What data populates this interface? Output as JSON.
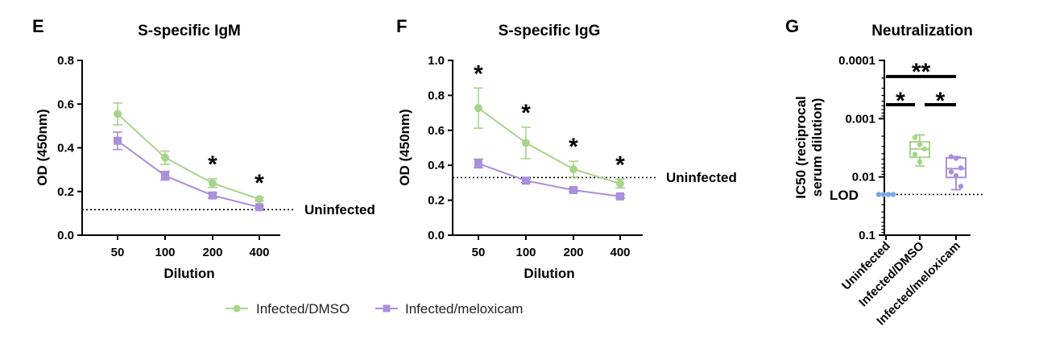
{
  "colors": {
    "dmso": "#a6d58a",
    "meloxicam": "#a98fdc",
    "uninfected": "#7aa6e8"
  },
  "legend": {
    "dmso": "Infected/DMSO",
    "meloxicam": "Infected/meloxicam"
  },
  "chart_data": [
    {
      "panel": "E",
      "type": "line",
      "title": "S-specific IgM",
      "xlabel": "Dilution",
      "ylabel": "OD (450nm)",
      "categories": [
        "50",
        "100",
        "200",
        "400"
      ],
      "ylim": [
        0,
        0.8
      ],
      "yticks": [
        0.0,
        0.2,
        0.4,
        0.6,
        0.8
      ],
      "ytick_labels": [
        "0.0",
        "0.2",
        "0.4",
        "0.6",
        "0.8"
      ],
      "series": [
        {
          "name": "Infected/DMSO",
          "values": [
            0.555,
            0.355,
            0.238,
            0.165
          ],
          "errors": [
            0.05,
            0.03,
            0.02,
            0.008
          ]
        },
        {
          "name": "Infected/meloxicam",
          "values": [
            0.432,
            0.272,
            0.182,
            0.128
          ],
          "errors": [
            0.04,
            0.02,
            0.012,
            0.006
          ]
        }
      ],
      "reference_line": {
        "value": 0.117,
        "label": "Uninfected"
      },
      "significance": [
        {
          "category": "200",
          "label": "*"
        },
        {
          "category": "400",
          "label": "*"
        }
      ]
    },
    {
      "panel": "F",
      "type": "line",
      "title": "S-specific IgG",
      "xlabel": "Dilution",
      "ylabel": "OD (450nm)",
      "categories": [
        "50",
        "100",
        "200",
        "400"
      ],
      "ylim": [
        0,
        1.0
      ],
      "yticks": [
        0.0,
        0.2,
        0.4,
        0.6,
        0.8,
        1.0
      ],
      "ytick_labels": [
        "0.0",
        "0.2",
        "0.4",
        "0.6",
        "0.8",
        "1.0"
      ],
      "series": [
        {
          "name": "Infected/DMSO",
          "values": [
            0.727,
            0.528,
            0.378,
            0.295
          ],
          "errors": [
            0.115,
            0.09,
            0.045,
            0.025
          ]
        },
        {
          "name": "Infected/meloxicam",
          "values": [
            0.41,
            0.312,
            0.258,
            0.222
          ],
          "errors": [
            0.025,
            0.01,
            0.01,
            0.01
          ]
        }
      ],
      "reference_line": {
        "value": 0.33,
        "label": "Uninfected"
      },
      "significance": [
        {
          "category": "50",
          "label": "*"
        },
        {
          "category": "100",
          "label": "*"
        },
        {
          "category": "200",
          "label": "*"
        },
        {
          "category": "400",
          "label": "*"
        }
      ]
    },
    {
      "panel": "G",
      "type": "box",
      "title": "Neutralization",
      "ylabel_lines": [
        "IC50 (reciprocal",
        "serum dilution)"
      ],
      "yscale": "log",
      "y_inverted": true,
      "yticks": [
        0.0001,
        0.001,
        0.01,
        0.1
      ],
      "ytick_labels": [
        "0.0001",
        "0.001",
        "0.01",
        "0.1"
      ],
      "categories": [
        "Uninfected",
        "Infected/DMSO",
        "Infected/meloxicam"
      ],
      "reference_line": {
        "value": 0.02,
        "label": "LOD"
      },
      "groups": [
        {
          "name": "Uninfected",
          "points": [
            0.02,
            0.02,
            0.02,
            0.02
          ],
          "box": null
        },
        {
          "name": "Infected/DMSO",
          "points": [
            0.0021,
            0.0028,
            0.0033,
            0.0041,
            0.0055
          ],
          "box": {
            "min": 0.0019,
            "q1": 0.0025,
            "median": 0.0033,
            "q3": 0.0046,
            "max": 0.0065
          }
        },
        {
          "name": "Infected/meloxicam",
          "points": [
            0.0045,
            0.0048,
            0.007,
            0.0082,
            0.0095,
            0.0145
          ],
          "box": {
            "min": 0.0045,
            "q1": 0.0047,
            "median": 0.0072,
            "q3": 0.0102,
            "max": 0.0165
          }
        }
      ],
      "significance": [
        {
          "from": "Uninfected",
          "to": "Infected/meloxicam",
          "label": "**"
        },
        {
          "from": "Uninfected",
          "to": "Infected/DMSO",
          "label": "*"
        },
        {
          "from": "Infected/DMSO",
          "to": "Infected/meloxicam",
          "label": "*"
        }
      ]
    }
  ]
}
